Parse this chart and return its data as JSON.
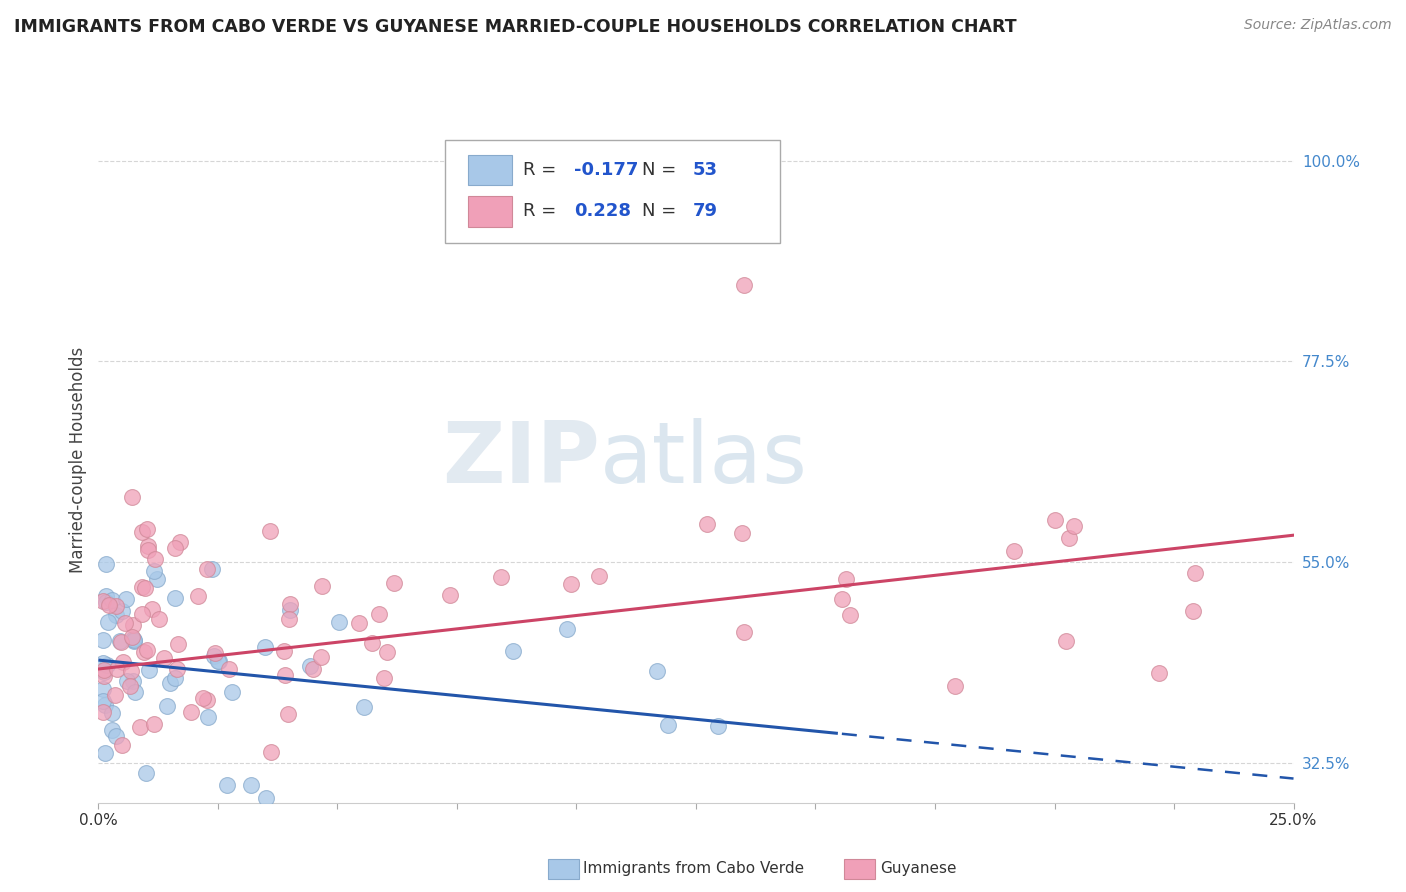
{
  "title": "IMMIGRANTS FROM CABO VERDE VS GUYANESE MARRIED-COUPLE HOUSEHOLDS CORRELATION CHART",
  "source": "Source: ZipAtlas.com",
  "ylabel": "Married-couple Households",
  "xlim": [
    0.0,
    0.25
  ],
  "ylim": [
    0.28,
    1.05
  ],
  "yticks": [
    0.325,
    0.55,
    0.775,
    1.0
  ],
  "ytick_labels": [
    "32.5%",
    "55.0%",
    "77.5%",
    "100.0%"
  ],
  "xtick_labels": [
    "0.0%",
    "25.0%"
  ],
  "blue_color": "#a8c8e8",
  "pink_color": "#f0a0b8",
  "blue_edge": "#88aacc",
  "pink_edge": "#d08898",
  "blue_line_color": "#2255aa",
  "pink_line_color": "#cc4466",
  "R_blue": -0.177,
  "N_blue": 53,
  "R_pink": 0.228,
  "N_pink": 79,
  "watermark": "ZIPatlas",
  "bg_color": "#ffffff",
  "grid_color": "#cccccc",
  "legend_text_color": "#333333",
  "legend_val_color": "#2255cc",
  "right_axis_color": "#4488cc",
  "title_color": "#222222",
  "source_color": "#888888"
}
